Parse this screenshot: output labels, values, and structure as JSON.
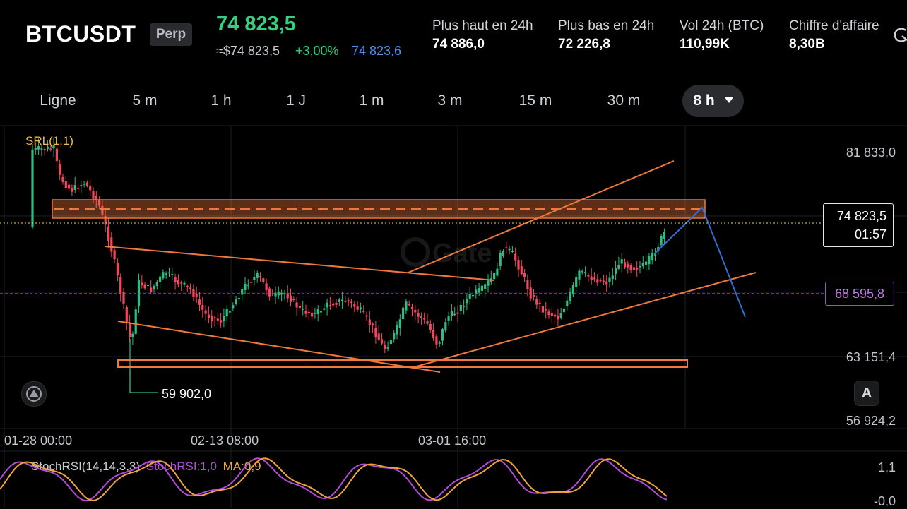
{
  "header": {
    "symbol": "BTCUSDT",
    "contract_type": "Perp",
    "last_price": "74 823,5",
    "index_price": "≈$74 823,5",
    "change_pct": "+3,00%",
    "mark_price": "74 823,6",
    "stats": [
      {
        "label": "Plus haut en 24h",
        "value": "74 886,0"
      },
      {
        "label": "Plus bas en 24h",
        "value": "72 226,8"
      },
      {
        "label": "Vol 24h (BTC)",
        "value": "110,99K"
      },
      {
        "label": "Chiffre d'affaire",
        "value": "8,30B"
      }
    ],
    "refresh_icon": "refresh-icon"
  },
  "timeframes": {
    "items": [
      "Ligne",
      "5 m",
      "1 h",
      "1 J",
      "1 m",
      "3 m",
      "15 m",
      "30 m"
    ],
    "active": "8 h",
    "active_icon": "caret-down-icon"
  },
  "chart": {
    "indicator_label": "SRL(1,1)",
    "price_axis": [
      "81 833,0",
      "63 151,4",
      "56 924,2"
    ],
    "current_price": "74 823,5",
    "countdown": "01:57",
    "level_price": "68 595,8",
    "low_marker": "59 902,0",
    "time_axis": [
      "01-28 00:00",
      "02-13 08:00",
      "03-01 16:00"
    ],
    "watermark": "Gate",
    "tool_icon": "drawing-tools-icon",
    "auto_scale_label": "A",
    "colors": {
      "up": "#2ebd85",
      "down": "#f6465d",
      "drawing": "#f0783c",
      "projection": "#2f6fd1",
      "level": "#a24fd8"
    }
  },
  "chart_data": {
    "type": "candlestick",
    "interval": "8h",
    "x_axis_ticks": [
      "01-28 00:00",
      "02-13 08:00",
      "03-01 16:00"
    ],
    "y_axis_ticks": [
      81833.0,
      63151.4,
      56924.2
    ],
    "current": 74823.5,
    "marked_low": 59902.0,
    "horizontal_level": 68595.8,
    "ylim": [
      56924.2,
      81833.0
    ]
  },
  "oscillator": {
    "name": "StochRSI(14,14,3,3)",
    "k_label": "StochRSI:1,0",
    "d_label": "MA:0,9",
    "axis": [
      "1,1",
      "-0,0"
    ],
    "colors": {
      "k": "#b14bd8",
      "d": "#f0a43a"
    }
  }
}
